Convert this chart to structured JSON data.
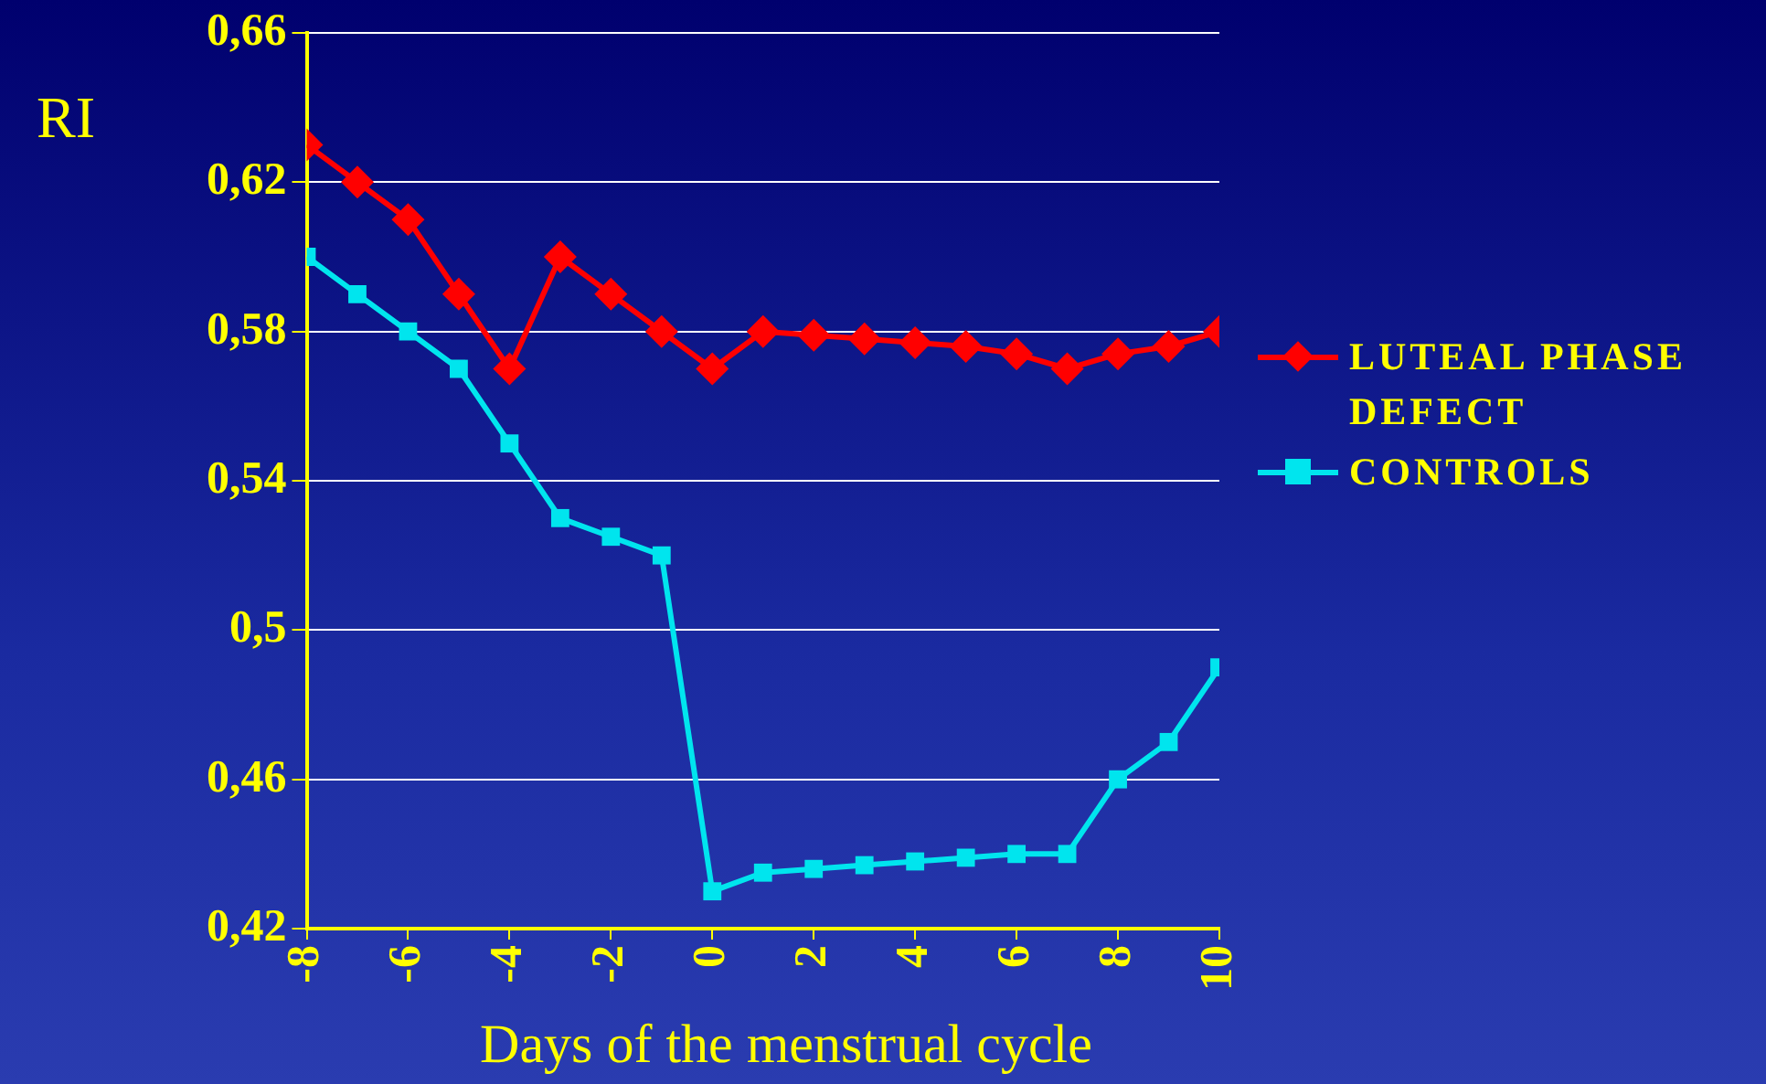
{
  "chart_data": {
    "type": "line",
    "xlabel": "Days of the menstrual cycle",
    "ylabel": "RI",
    "x": [
      -8,
      -7,
      -6,
      -5,
      -4,
      -3,
      -2,
      -1,
      0,
      1,
      2,
      3,
      4,
      5,
      6,
      7,
      8,
      9,
      10
    ],
    "series": [
      {
        "name": "LUTEAL PHASE DEFECT",
        "color": "#ff0000",
        "marker": "diamond",
        "values": [
          0.63,
          0.62,
          0.61,
          0.59,
          0.57,
          0.6,
          0.59,
          0.58,
          0.57,
          0.58,
          0.579,
          0.578,
          0.577,
          0.576,
          0.574,
          0.57,
          0.574,
          0.576,
          0.58
        ]
      },
      {
        "name": "CONTROLS",
        "color": "#00e5ee",
        "marker": "square",
        "values": [
          0.6,
          0.59,
          0.58,
          0.57,
          0.55,
          0.53,
          0.525,
          0.52,
          0.43,
          0.435,
          0.436,
          0.437,
          0.438,
          0.439,
          0.44,
          0.44,
          0.46,
          0.47,
          0.49
        ]
      }
    ],
    "xlim": [
      -8,
      10
    ],
    "xticks": [
      -8,
      -6,
      -4,
      -2,
      0,
      2,
      4,
      6,
      8,
      10
    ],
    "ylim": [
      0.42,
      0.66
    ],
    "yticks": [
      {
        "value": 0.42,
        "label": "0,42"
      },
      {
        "value": 0.46,
        "label": "0,46"
      },
      {
        "value": 0.5,
        "label": "0,5"
      },
      {
        "value": 0.54,
        "label": "0,54"
      },
      {
        "value": 0.58,
        "label": "0,58"
      },
      {
        "value": 0.62,
        "label": "0,62"
      },
      {
        "value": 0.66,
        "label": "0,66"
      }
    ],
    "grid": "y",
    "legend": "right"
  }
}
